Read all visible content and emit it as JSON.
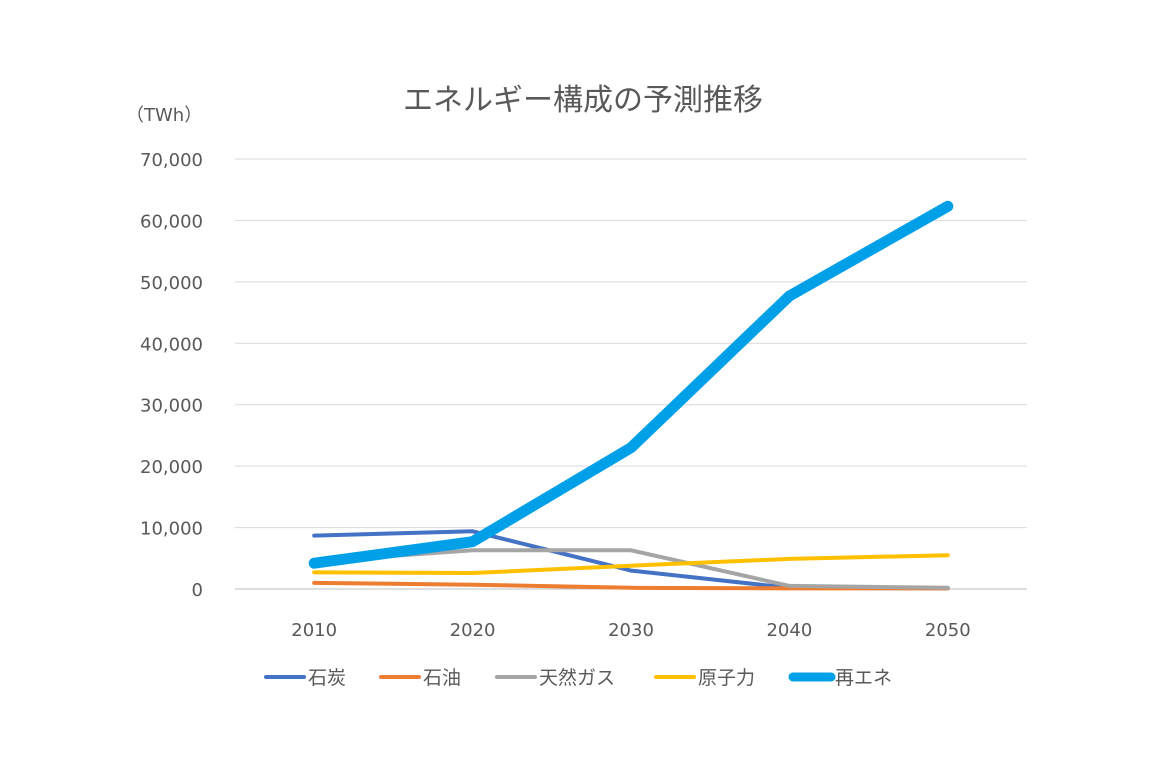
{
  "chart_data": {
    "type": "line",
    "title": "エネルギー構成の予測推移",
    "unit_label": "（TWh）",
    "categories": [
      "2010",
      "2020",
      "2030",
      "2040",
      "2050"
    ],
    "ylim": [
      0,
      70000
    ],
    "yticks": [
      {
        "value": 0,
        "label": "0"
      },
      {
        "value": 10000,
        "label": "10,000"
      },
      {
        "value": 20000,
        "label": "20,000"
      },
      {
        "value": 30000,
        "label": "30,000"
      },
      {
        "value": 40000,
        "label": "40,000"
      },
      {
        "value": 50000,
        "label": "50,000"
      },
      {
        "value": 60000,
        "label": "60,000"
      },
      {
        "value": 70000,
        "label": "70,000"
      }
    ],
    "grid": true,
    "legend_position": "bottom",
    "series": [
      {
        "name": "石炭",
        "color": "#4472C4",
        "emphasis": false,
        "values": [
          8700,
          9400,
          3000,
          200,
          100
        ]
      },
      {
        "name": "石油",
        "color": "#ED7D31",
        "emphasis": false,
        "values": [
          1000,
          700,
          200,
          100,
          100
        ]
      },
      {
        "name": "天然ガス",
        "color": "#A5A5A5",
        "emphasis": false,
        "values": [
          4500,
          6300,
          6300,
          500,
          200
        ]
      },
      {
        "name": "原子力",
        "color": "#FFC000",
        "emphasis": false,
        "values": [
          2700,
          2600,
          3800,
          4900,
          5500
        ]
      },
      {
        "name": "再エネ",
        "color": "#00A0E9",
        "emphasis": true,
        "values": [
          4200,
          7700,
          23000,
          47700,
          62300
        ]
      }
    ]
  }
}
